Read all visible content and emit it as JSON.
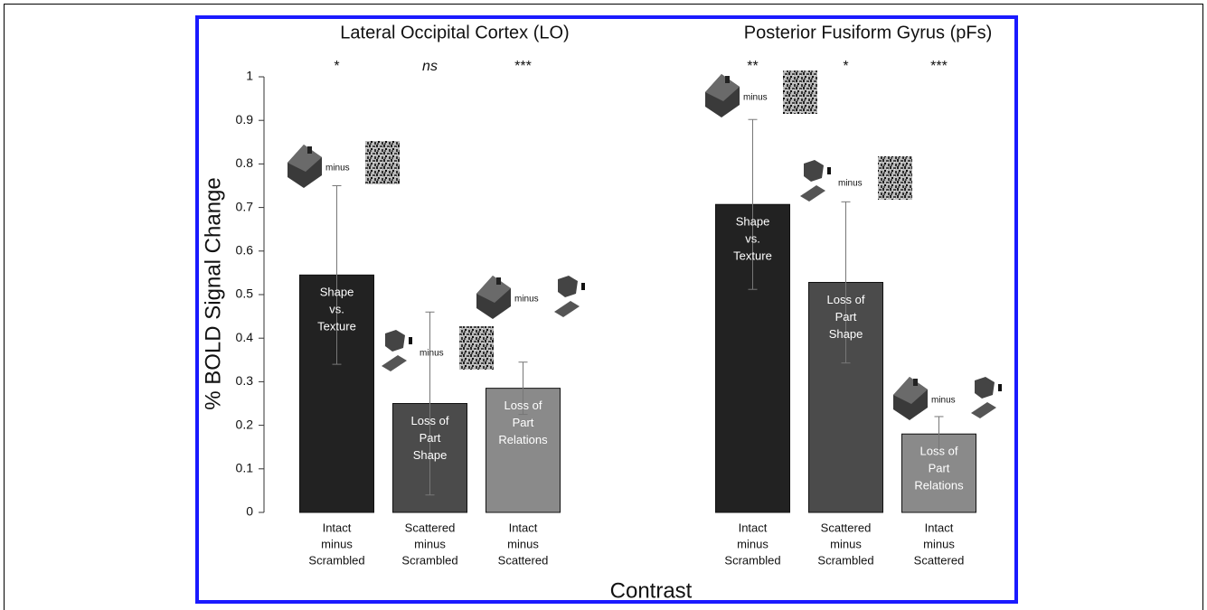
{
  "chart_data": {
    "type": "bar",
    "ylabel": "% BOLD Signal Change",
    "xlabel": "Contrast",
    "ylim": [
      0,
      1
    ],
    "yticks": [
      0,
      0.1,
      0.2,
      0.3,
      0.4,
      0.5,
      0.6,
      0.7,
      0.8,
      0.9,
      1
    ],
    "colors": [
      "#222222",
      "#4b4b4b",
      "#8a8a8a"
    ],
    "icon_text": "minus",
    "groups": [
      {
        "title": "Lateral Occipital Cortex (LO)",
        "categories": [
          [
            "Intact",
            "minus",
            "Scrambled"
          ],
          [
            "Scattered",
            "minus",
            "Scrambled"
          ],
          [
            "Intact",
            "minus",
            "Scattered"
          ]
        ],
        "values": [
          0.545,
          0.25,
          0.285
        ],
        "errors": [
          0.205,
          0.21,
          0.06
        ],
        "significance": [
          "*",
          "ns",
          "***"
        ],
        "bar_labels": [
          [
            "Shape",
            "vs.",
            "Texture"
          ],
          [
            "Loss of",
            "Part",
            "Shape"
          ],
          [
            "Loss of",
            "Part",
            "Relations"
          ]
        ]
      },
      {
        "title": "Posterior Fusiform Gyrus (pFs)",
        "categories": [
          [
            "Intact",
            "minus",
            "Scrambled"
          ],
          [
            "Scattered",
            "minus",
            "Scrambled"
          ],
          [
            "Intact",
            "minus",
            "Scattered"
          ]
        ],
        "values": [
          0.707,
          0.528,
          0.18
        ],
        "errors": [
          0.195,
          0.185,
          0.04
        ],
        "significance": [
          "**",
          "*",
          "***"
        ],
        "bar_labels": [
          [
            "Shape",
            "vs.",
            "Texture"
          ],
          [
            "Loss of",
            "Part",
            "Shape"
          ],
          [
            "Loss of",
            "Part",
            "Relations"
          ]
        ]
      }
    ]
  }
}
